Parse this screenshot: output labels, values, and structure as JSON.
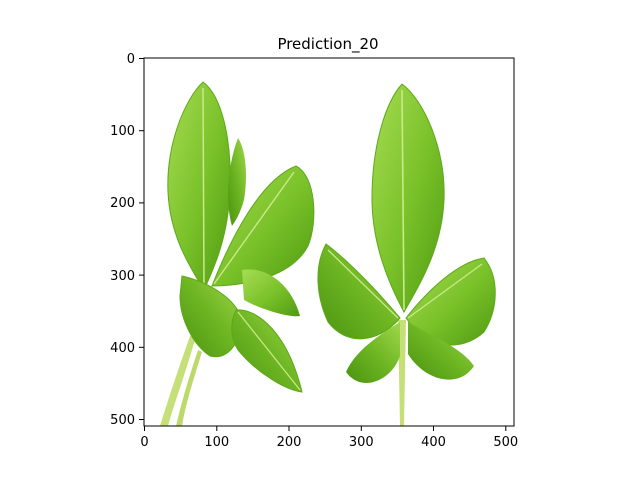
{
  "figure": {
    "title": "Prediction_20",
    "x_ticks": [
      "0",
      "100",
      "200",
      "300",
      "400",
      "500"
    ],
    "y_ticks": [
      "0",
      "100",
      "200",
      "300",
      "400",
      "500"
    ],
    "image_subject": "green strawberry leaves on white background",
    "colors": {
      "leaf_dark": "#4f9a12",
      "leaf_mid": "#78c028",
      "leaf_light": "#a6dc52",
      "stem": "#c7df78",
      "background": "#ffffff",
      "axes": "#000000"
    }
  }
}
